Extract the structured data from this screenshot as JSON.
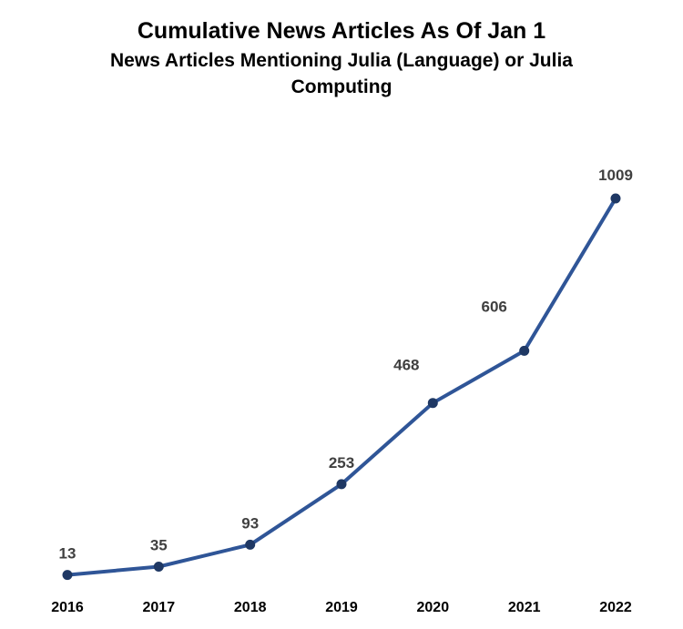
{
  "colors": {
    "series_line": "#2f5597",
    "marker_fill": "#1f3864",
    "data_label": "#404040",
    "tick_label": "#000000",
    "background": "#ffffff"
  },
  "chart_data": {
    "type": "line",
    "title": "Cumulative News Articles As Of Jan 1",
    "subtitle": "News Articles Mentioning Julia (Language) or Julia Computing",
    "xlabel": "",
    "ylabel": "",
    "categories": [
      "2016",
      "2017",
      "2018",
      "2019",
      "2020",
      "2021",
      "2022"
    ],
    "series": [
      {
        "name": "Cumulative News Articles",
        "values": [
          13,
          35,
          93,
          253,
          468,
          606,
          1009
        ],
        "data_labels": [
          "13",
          "35",
          "93",
          "253",
          "468",
          "606",
          "1009"
        ]
      }
    ],
    "ylim": [
      0,
      1009
    ],
    "grid": false,
    "legend": "none",
    "y_axis_visible": false
  }
}
